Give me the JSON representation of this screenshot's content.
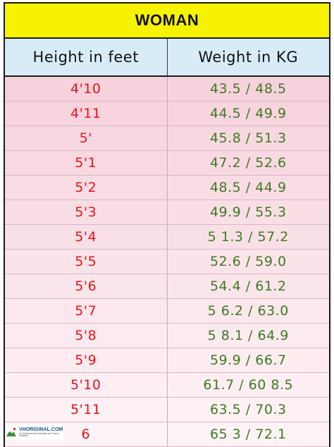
{
  "title": "WOMAN",
  "columns": {
    "height": "Height in feet",
    "weight": "Weight in KG"
  },
  "row_colors": {
    "shade_start": "#f6d2dc",
    "shade_end": "#fdf3f6"
  },
  "rows": [
    {
      "height": "4'10",
      "weight": "43.5 / 48.5"
    },
    {
      "height": "4'11",
      "weight": "44.5 / 49.9"
    },
    {
      "height": "5'",
      "weight": "45.8 / 51.3"
    },
    {
      "height": "5'1",
      "weight": "47.2 / 52.6"
    },
    {
      "height": "5'2",
      "weight": "48.5 / 44.9"
    },
    {
      "height": "5'3",
      "weight": "49.9 / 55.3"
    },
    {
      "height": "5'4",
      "weight": "5 1.3 / 57.2"
    },
    {
      "height": "5'5",
      "weight": "52.6 / 59.0"
    },
    {
      "height": "5'6",
      "weight": "54.4 / 61.2"
    },
    {
      "height": "5'7",
      "weight": "5 6.2 / 63.0"
    },
    {
      "height": "5'8",
      "weight": "5 8.1 / 64.9"
    },
    {
      "height": "5'9",
      "weight": "59.9 / 66.7"
    },
    {
      "height": "5'10",
      "weight": "61.7 / 60 8.5"
    },
    {
      "height": "5'11",
      "weight": "63.5 / 70.3"
    },
    {
      "height": "6",
      "weight": "65 3 / 72.1"
    }
  ],
  "watermark": {
    "icon": "mountain-logo-icon",
    "main": "VHORIGINAL.COM",
    "sub": "An Experimental Lifestyle and Travel Initiative"
  }
}
